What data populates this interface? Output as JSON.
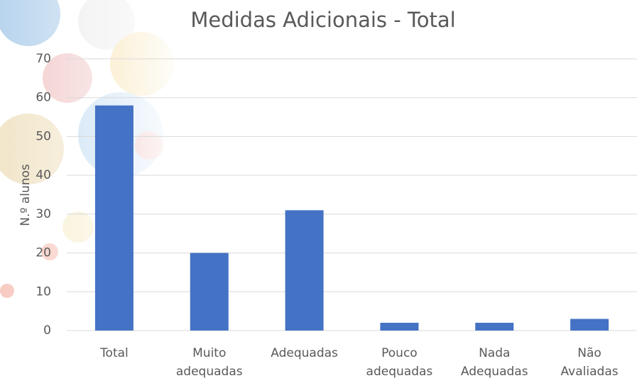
{
  "chart_data": {
    "type": "bar",
    "title": "Medidas Adicionais - Total",
    "y_label": "N.º alunos",
    "categories": [
      "Total",
      "Muito adequadas",
      "Adequadas",
      "Pouco adequadas",
      "Nada Adequadas",
      "Não Avaliadas"
    ],
    "values": [
      58,
      20,
      31,
      2,
      2,
      3
    ],
    "color": "#4472c4",
    "ylim": [
      0,
      70
    ],
    "yticks": [
      0,
      10,
      20,
      30,
      40,
      50,
      60,
      70
    ],
    "grid": true
  }
}
